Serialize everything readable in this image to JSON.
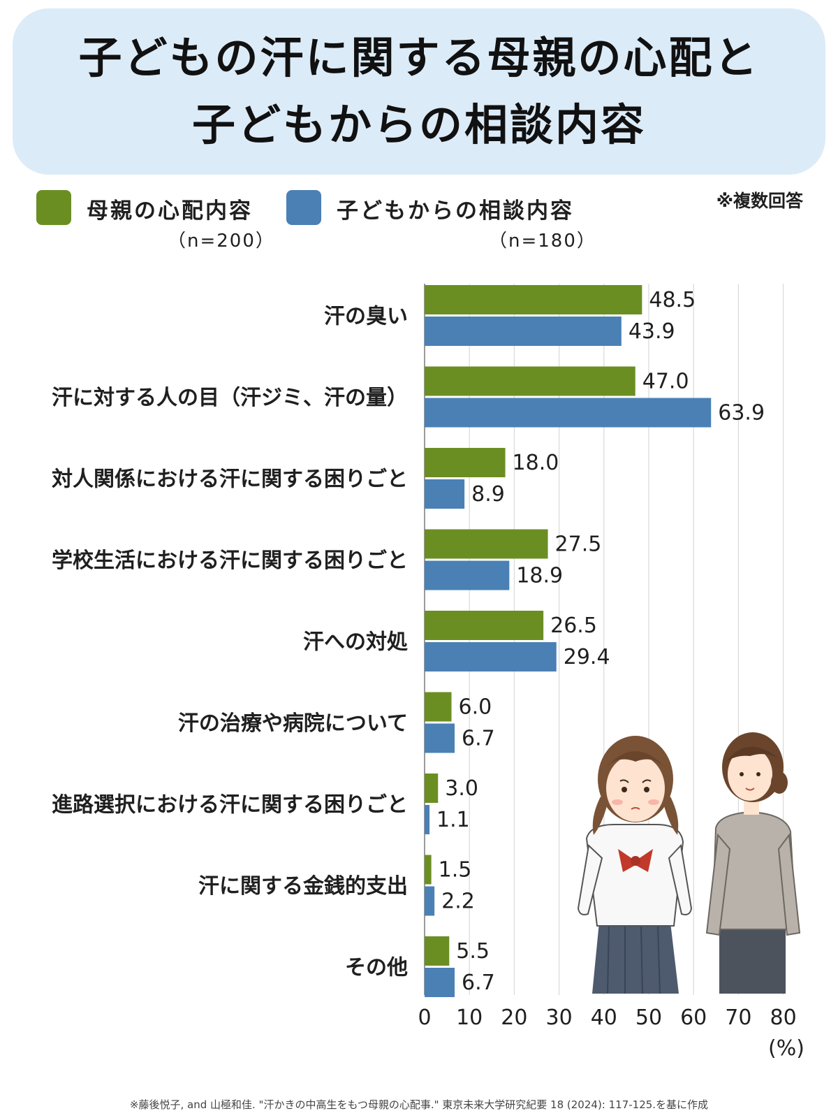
{
  "header": {
    "title_line1": "子どもの汗に関する母親の心配と",
    "title_line2": "子どもからの相談内容"
  },
  "note": "※複数回答",
  "source": "※藤後悦子, and 山極和佳. \"汗かきの中高生をもつ母親の心配事.\" 東京未来大学研究紀要 18 (2024): 117-125.を基に作成",
  "colors": {
    "mother": "#6b8e23",
    "child": "#4a80b4",
    "title_bg": "#dcebf8",
    "grid": "#d9d9d9"
  },
  "chart_data": {
    "type": "bar",
    "orientation": "horizontal",
    "categories": [
      "汗の臭い",
      "汗に対する人の目（汗ジミ、汗の量）",
      "対人関係における汗に関する困りごと",
      "学校生活における汗に関する困りごと",
      "汗への対処",
      "汗の治療や病院について",
      "進路選択における汗に関する困りごと",
      "汗に関する金銭的支出",
      "その他"
    ],
    "series": [
      {
        "name": "母親の心配内容",
        "n_label": "（n=200）",
        "values": [
          48.5,
          47.0,
          18.0,
          27.5,
          26.5,
          6.0,
          3.0,
          1.5,
          5.5
        ],
        "labels": [
          "48.5",
          "47.0",
          "18.0",
          "27.5",
          "26.5",
          "6.0",
          "3.0",
          "1.5",
          "5.5"
        ]
      },
      {
        "name": "子どもからの相談内容",
        "n_label": "（n=180）",
        "values": [
          43.9,
          63.9,
          8.9,
          18.9,
          29.4,
          6.7,
          1.1,
          2.2,
          6.7
        ],
        "labels": [
          "43.9",
          "63.9",
          "8.9",
          "18.9",
          "29.4",
          "6.7",
          "1.1",
          "2.2",
          "6.7"
        ]
      }
    ],
    "xlim": [
      0,
      80
    ],
    "xticks": [
      "0",
      "10",
      "20",
      "30",
      "40",
      "50",
      "60",
      "70",
      "80"
    ],
    "xunit": "(%)",
    "grid": true,
    "legend": "top"
  }
}
